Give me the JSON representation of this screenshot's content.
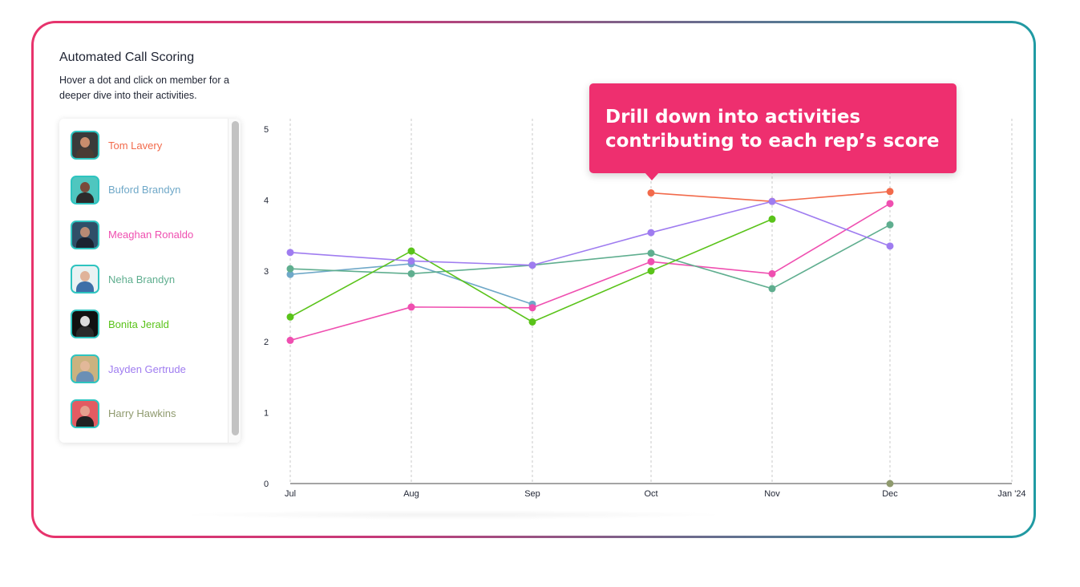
{
  "header": {
    "title": "Automated Call Scoring",
    "subtitle": "Hover a dot and click on member for a deeper dive into their activities."
  },
  "members": [
    {
      "name": "Tom Lavery",
      "color": "#f26a4b"
    },
    {
      "name": "Buford Brandyn",
      "color": "#6fa8c8"
    },
    {
      "name": "Meaghan Ronaldo",
      "color": "#ef4fb0"
    },
    {
      "name": "Neha Brandyn",
      "color": "#5fae8f"
    },
    {
      "name": "Bonita Jerald",
      "color": "#5ac31a"
    },
    {
      "name": "Jayden Gertrude",
      "color": "#9f7cf0"
    },
    {
      "name": "Harry Hawkins",
      "color": "#8f9a6e"
    }
  ],
  "callout": {
    "text": "Drill down into activities\ncontributing to each rep’s score"
  },
  "chart_data": {
    "type": "line",
    "categories": [
      "Jul",
      "Aug",
      "Sep",
      "Oct",
      "Nov",
      "Dec",
      "Jan '24"
    ],
    "ylim": [
      0,
      5
    ],
    "yticks": [
      0,
      1,
      2,
      3,
      4,
      5
    ],
    "grid": "vertical-dashed",
    "series": [
      {
        "name": "Tom Lavery",
        "color": "#f26a4b",
        "values": [
          null,
          null,
          null,
          4.1,
          3.98,
          4.12,
          null
        ]
      },
      {
        "name": "Buford Brandyn",
        "color": "#6fa8c8",
        "values": [
          2.95,
          3.1,
          2.53,
          null,
          null,
          null,
          null
        ]
      },
      {
        "name": "Meaghan Ronaldo",
        "color": "#ef4fb0",
        "values": [
          2.02,
          2.49,
          2.48,
          3.13,
          2.96,
          3.95,
          null
        ]
      },
      {
        "name": "Neha Brandyn",
        "color": "#5fae8f",
        "values": [
          3.03,
          2.96,
          3.08,
          3.25,
          2.75,
          3.65,
          null
        ]
      },
      {
        "name": "Bonita Jerald",
        "color": "#5ac31a",
        "values": [
          2.35,
          3.28,
          2.28,
          3.0,
          3.73,
          null,
          null
        ]
      },
      {
        "name": "Jayden Gertrude",
        "color": "#9f7cf0",
        "values": [
          3.26,
          3.14,
          3.08,
          3.54,
          3.98,
          3.35,
          null
        ]
      },
      {
        "name": "Harry Hawkins",
        "color": "#8f9a6e",
        "values": [
          null,
          null,
          null,
          null,
          null,
          0,
          null
        ]
      }
    ]
  }
}
